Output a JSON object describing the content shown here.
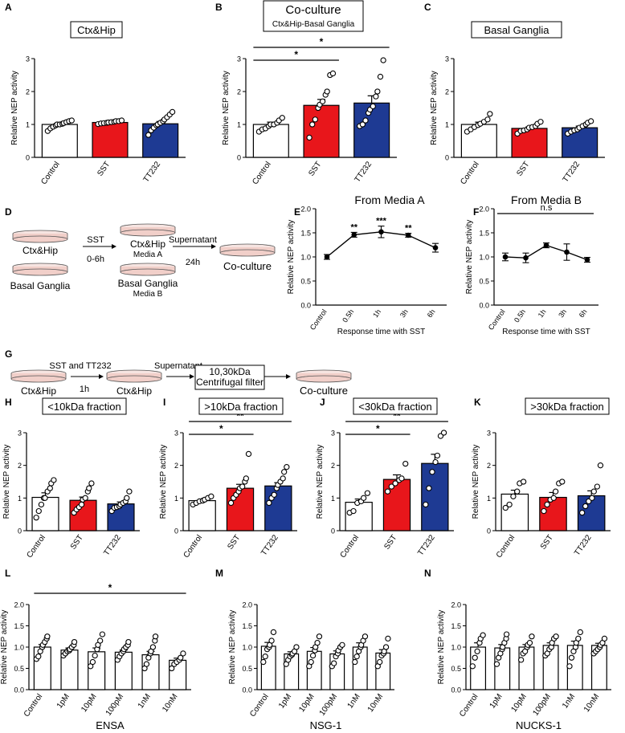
{
  "figure": {
    "ylabel": "Relative NEP activity",
    "colors": {
      "control": "#ffffff",
      "sst": "#e8161b",
      "tt232": "#1e3a93",
      "line": "#000000",
      "box_bg": "#f4d9d5"
    }
  },
  "panel_letters": [
    "A",
    "B",
    "C",
    "D",
    "E",
    "F",
    "G",
    "H",
    "I",
    "J",
    "K",
    "L",
    "M",
    "N"
  ],
  "diagram_d": {
    "dish1": "Ctx&Hip",
    "dish2": "Basal Ganglia",
    "arrow1_top": "SST",
    "arrow1_bottom": "0-6h",
    "dish3_title": "Ctx&Hip",
    "dish3_sub": "Media A",
    "dish4_title": "Basal Ganglia",
    "dish4_sub": "Media B",
    "arrow2_top": "Supernatant",
    "arrow2_bottom": "24h",
    "dish5": "Co-culture"
  },
  "diagram_g": {
    "dish1": "Ctx&Hip",
    "arrow1_top": "SST and TT232",
    "arrow1_bottom": "1h",
    "dish2": "Ctx&Hip",
    "arrow2_top": "Supernatant",
    "filter_line1": "10,30kDa",
    "filter_line2": "Centrifugal filter",
    "dish3": "Co-culture"
  },
  "chart_data": [
    {
      "id": "A",
      "type": "bar",
      "title": "Ctx&Hip",
      "categories": [
        "Control",
        "SST",
        "TT232"
      ],
      "values": [
        1.0,
        1.06,
        1.02
      ],
      "errors": [
        0.04,
        0.02,
        0.07
      ],
      "ylim": [
        0,
        3
      ],
      "yticks": [
        0,
        1,
        2,
        3
      ],
      "points": [
        [
          0.8,
          0.88,
          0.93,
          0.97,
          1.0,
          1.0,
          1.02,
          1.04,
          1.07,
          1.1,
          1.12
        ],
        [
          1.01,
          1.03,
          1.04,
          1.05,
          1.06,
          1.07,
          1.08,
          1.1,
          1.1,
          1.12
        ],
        [
          0.68,
          0.82,
          0.9,
          0.97,
          1.0,
          1.05,
          1.1,
          1.15,
          1.22,
          1.3,
          1.38
        ]
      ],
      "significance": []
    },
    {
      "id": "B",
      "type": "bar",
      "title": "Co-culture",
      "subtitle": "Ctx&Hip-Basal Ganglia",
      "categories": [
        "Control",
        "SST",
        "TT232"
      ],
      "values": [
        1.0,
        1.58,
        1.65
      ],
      "errors": [
        0.07,
        0.18,
        0.22
      ],
      "ylim": [
        0,
        3
      ],
      "yticks": [
        0,
        1,
        2,
        3
      ],
      "points": [
        [
          0.78,
          0.85,
          0.88,
          0.95,
          1.0,
          1.0,
          1.05,
          1.12,
          1.2
        ],
        [
          0.6,
          1.0,
          1.15,
          1.5,
          1.6,
          1.7,
          1.9,
          2.0,
          2.5,
          2.55
        ],
        [
          0.95,
          1.0,
          1.12,
          1.35,
          1.45,
          1.55,
          1.85,
          2.0,
          2.45,
          2.95
        ]
      ],
      "significance": [
        {
          "from": 0,
          "to": 1,
          "label": "*"
        },
        {
          "from": 0,
          "to": 2,
          "label": "*"
        }
      ]
    },
    {
      "id": "C",
      "type": "bar",
      "title": "Basal Ganglia",
      "categories": [
        "Control",
        "SST",
        "TT232"
      ],
      "values": [
        1.0,
        0.88,
        0.9
      ],
      "errors": [
        0.07,
        0.04,
        0.05
      ],
      "ylim": [
        0,
        3
      ],
      "yticks": [
        0,
        1,
        2,
        3
      ],
      "points": [
        [
          0.78,
          0.85,
          0.92,
          0.98,
          1.02,
          1.08,
          1.15,
          1.32
        ],
        [
          0.72,
          0.8,
          0.82,
          0.85,
          0.9,
          0.92,
          0.95,
          1.02,
          1.08
        ],
        [
          0.72,
          0.78,
          0.82,
          0.85,
          0.9,
          0.95,
          1.0,
          1.05,
          1.1
        ]
      ],
      "significance": []
    },
    {
      "id": "E",
      "type": "line",
      "title": "From Media A",
      "categories": [
        "Control",
        "0.5h",
        "1h",
        "3h",
        "6h"
      ],
      "values": [
        1.0,
        1.46,
        1.52,
        1.45,
        1.19
      ],
      "errors": [
        0.05,
        0.05,
        0.12,
        0.04,
        0.09
      ],
      "xlabel": "Response time with SST",
      "ylim": [
        0,
        2.0
      ],
      "yticks": [
        0.0,
        0.5,
        1.0,
        1.5,
        2.0
      ],
      "annotations": [
        "",
        "**",
        "***",
        "**",
        ""
      ]
    },
    {
      "id": "F",
      "type": "line",
      "title": "From Media B",
      "categories": [
        "Control",
        "0.5h",
        "1h",
        "3h",
        "6h"
      ],
      "values": [
        1.0,
        0.98,
        1.24,
        1.1,
        0.94
      ],
      "errors": [
        0.08,
        0.1,
        0.05,
        0.17,
        0.05
      ],
      "xlabel": "Response time with SST",
      "ylim": [
        0,
        2.0
      ],
      "yticks": [
        0.0,
        0.5,
        1.0,
        1.5,
        2.0
      ],
      "bracket": "n.s"
    },
    {
      "id": "H",
      "type": "bar",
      "title": "<10kDa fraction",
      "categories": [
        "Control",
        "SST",
        "TT232"
      ],
      "values": [
        1.02,
        0.93,
        0.82
      ],
      "errors": [
        0.14,
        0.1,
        0.06
      ],
      "ylim": [
        0,
        3
      ],
      "yticks": [
        0,
        1,
        2,
        3
      ],
      "points": [
        [
          0.4,
          0.6,
          0.8,
          1.0,
          1.0,
          1.2,
          1.3,
          1.45,
          1.55
        ],
        [
          0.55,
          0.65,
          0.72,
          0.8,
          0.95,
          1.0,
          1.2,
          1.3,
          1.45
        ],
        [
          0.6,
          0.7,
          0.72,
          0.75,
          0.8,
          0.85,
          0.9,
          1.0,
          1.2
        ]
      ],
      "significance": []
    },
    {
      "id": "I",
      "type": "bar",
      "title": ">10kDa fraction",
      "categories": [
        "Control",
        "SST",
        "TT232"
      ],
      "values": [
        0.92,
        1.3,
        1.37
      ],
      "errors": [
        0.04,
        0.12,
        0.1
      ],
      "ylim": [
        0,
        3
      ],
      "yticks": [
        0,
        1,
        2,
        3
      ],
      "points": [
        [
          0.8,
          0.85,
          0.9,
          0.92,
          0.95,
          1.0,
          1.05
        ],
        [
          0.85,
          1.0,
          1.1,
          1.2,
          1.3,
          1.35,
          1.5,
          1.6,
          2.35
        ],
        [
          0.85,
          1.0,
          1.1,
          1.3,
          1.4,
          1.5,
          1.6,
          1.8,
          1.95
        ]
      ],
      "significance": [
        {
          "from": 0,
          "to": 1,
          "label": "*"
        },
        {
          "from": 0,
          "to": 2,
          "label": "**"
        }
      ]
    },
    {
      "id": "J",
      "type": "bar",
      "title": "<30kDa fraction",
      "categories": [
        "Control",
        "SST",
        "TT232"
      ],
      "values": [
        0.87,
        1.57,
        2.06
      ],
      "errors": [
        0.1,
        0.14,
        0.28
      ],
      "ylim": [
        0,
        3
      ],
      "yticks": [
        0,
        1,
        2,
        3
      ],
      "points": [
        [
          0.55,
          0.6,
          0.85,
          0.9,
          1.0,
          1.15
        ],
        [
          1.2,
          1.35,
          1.45,
          1.55,
          1.6,
          2.05
        ],
        [
          0.8,
          1.3,
          1.8,
          2.1,
          2.3,
          2.9,
          3.0
        ]
      ],
      "significance": [
        {
          "from": 0,
          "to": 1,
          "label": "*"
        },
        {
          "from": 0,
          "to": 2,
          "label": "**"
        }
      ]
    },
    {
      "id": "K",
      "type": "bar",
      "title": ">30kDa fraction",
      "categories": [
        "Control",
        "SST",
        "TT232"
      ],
      "values": [
        1.12,
        1.02,
        1.07
      ],
      "errors": [
        0.12,
        0.15,
        0.15
      ],
      "ylim": [
        0,
        3
      ],
      "yticks": [
        0,
        1,
        2,
        3
      ],
      "points": [
        [
          0.7,
          0.8,
          1.05,
          1.2,
          1.45,
          1.5
        ],
        [
          0.6,
          0.8,
          0.95,
          1.0,
          1.2,
          1.45,
          1.5
        ],
        [
          0.55,
          0.75,
          0.9,
          1.0,
          1.2,
          1.35,
          2.0
        ]
      ],
      "significance": []
    },
    {
      "id": "L",
      "type": "bar",
      "xlabel": "ENSA",
      "categories": [
        "Control",
        "1pM",
        "10pM",
        "100pM",
        "1nM",
        "10nM"
      ],
      "values": [
        1.0,
        0.93,
        0.89,
        0.88,
        0.82,
        0.69
      ],
      "errors": [
        0.06,
        0.05,
        0.09,
        0.05,
        0.08,
        0.05
      ],
      "ylim": [
        0,
        2.0
      ],
      "yticks": [
        0.0,
        0.5,
        1.0,
        1.5,
        2.0
      ],
      "points": [
        [
          0.72,
          0.78,
          0.9,
          1.0,
          1.05,
          1.12,
          1.2,
          1.25
        ],
        [
          0.8,
          0.85,
          0.9,
          0.92,
          0.95,
          1.0,
          1.05,
          1.12
        ],
        [
          0.55,
          0.65,
          0.8,
          0.95,
          1.05,
          1.15,
          1.3
        ],
        [
          0.7,
          0.78,
          0.85,
          0.9,
          0.95,
          1.0,
          1.05,
          1.12
        ],
        [
          0.5,
          0.6,
          0.75,
          0.85,
          0.9,
          1.0,
          1.15,
          1.25
        ],
        [
          0.5,
          0.6,
          0.65,
          0.7,
          0.75,
          0.85
        ]
      ],
      "significance": [
        {
          "from": 0,
          "to": 5,
          "label": "*"
        }
      ]
    },
    {
      "id": "M",
      "type": "bar",
      "xlabel": "NSG-1",
      "categories": [
        "Control",
        "1pM",
        "10pM",
        "100pM",
        "1nM",
        "10nM"
      ],
      "values": [
        1.02,
        0.84,
        0.9,
        0.84,
        1.0,
        0.86
      ],
      "errors": [
        0.09,
        0.05,
        0.09,
        0.07,
        0.1,
        0.08
      ],
      "ylim": [
        0,
        2.0
      ],
      "yticks": [
        0.0,
        0.5,
        1.0,
        1.5,
        2.0
      ],
      "points": [
        [
          0.65,
          0.78,
          0.95,
          1.0,
          1.05,
          1.15,
          1.35
        ],
        [
          0.6,
          0.7,
          0.78,
          0.82,
          0.85,
          0.9,
          1.0
        ],
        [
          0.55,
          0.65,
          0.8,
          0.92,
          1.0,
          1.1,
          1.25
        ],
        [
          0.55,
          0.62,
          0.78,
          0.85,
          0.92,
          1.0,
          1.05
        ],
        [
          0.65,
          0.78,
          0.9,
          1.0,
          1.05,
          1.15,
          1.25
        ],
        [
          0.55,
          0.65,
          0.8,
          0.85,
          0.9,
          1.0,
          1.2
        ]
      ],
      "significance": []
    },
    {
      "id": "N",
      "type": "bar",
      "xlabel": "NUCKS-1",
      "categories": [
        "Control",
        "1pM",
        "10pM",
        "100pM",
        "1nM",
        "10nM"
      ],
      "values": [
        1.0,
        0.98,
        1.0,
        1.04,
        1.04,
        1.04
      ],
      "errors": [
        0.1,
        0.08,
        0.06,
        0.06,
        0.1,
        0.05
      ],
      "ylim": [
        0,
        2.0
      ],
      "yticks": [
        0.0,
        0.5,
        1.0,
        1.5,
        2.0
      ],
      "points": [
        [
          0.55,
          0.75,
          0.9,
          1.1,
          1.2,
          1.28
        ],
        [
          0.6,
          0.75,
          0.85,
          0.95,
          1.0,
          1.1,
          1.2,
          1.3
        ],
        [
          0.7,
          0.85,
          0.9,
          1.0,
          1.05,
          1.1,
          1.25
        ],
        [
          0.8,
          0.85,
          0.95,
          1.0,
          1.1,
          1.2,
          1.25
        ],
        [
          0.55,
          0.75,
          0.9,
          1.0,
          1.1,
          1.2,
          1.35
        ],
        [
          0.85,
          0.9,
          0.95,
          1.0,
          1.05,
          1.1,
          1.2
        ]
      ],
      "significance": []
    }
  ]
}
